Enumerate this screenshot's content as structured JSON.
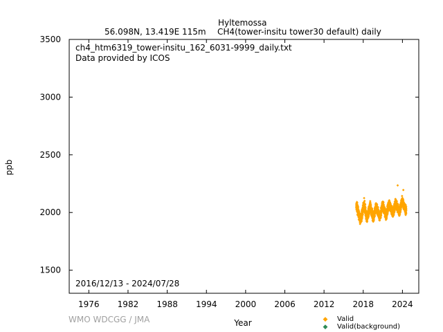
{
  "header": {
    "station": "Hyltemossa",
    "location": "56.098N, 13.419E 115m",
    "series_desc": "CH4(tower-insitu tower30 default) daily"
  },
  "chart_data": {
    "type": "scatter",
    "title": "Hyltemossa",
    "xlabel": "Year",
    "ylabel": "ppb",
    "xlim": [
      1973,
      2026.5
    ],
    "ylim": [
      1300,
      3500
    ],
    "xticks": [
      1976,
      1982,
      1988,
      1994,
      2000,
      2006,
      2012,
      2018,
      2024
    ],
    "yticks": [
      1500,
      2000,
      2500,
      3000,
      3500
    ],
    "grid": false,
    "legend_position": "bottom-right",
    "annotations": {
      "file": "ch4_htm6319_tower-insitu_162_6031-9999_daily.txt",
      "provider": "Data provided by ICOS",
      "period": "2016/12/13 - 2024/07/28"
    },
    "series": [
      {
        "name": "Valid",
        "color": "#ffa500",
        "description": "daily CH4 mole fraction, seasonal cycle with rising trend",
        "date_range": [
          "2016-12-13",
          "2024-07-28"
        ],
        "approx_points": [
          {
            "x": "2017-01-15",
            "y": 2050
          },
          {
            "x": "2017-03-15",
            "y": 2010
          },
          {
            "x": "2017-07-15",
            "y": 1935
          },
          {
            "x": "2017-10-15",
            "y": 1975
          },
          {
            "x": "2018-01-15",
            "y": 2055
          },
          {
            "x": "2018-03-15",
            "y": 2060
          },
          {
            "x": "2018-07-15",
            "y": 1940
          },
          {
            "x": "2018-11-15",
            "y": 2015
          },
          {
            "x": "2019-01-15",
            "y": 2060
          },
          {
            "x": "2019-07-15",
            "y": 1950
          },
          {
            "x": "2019-12-15",
            "y": 2050
          },
          {
            "x": "2020-07-15",
            "y": 1960
          },
          {
            "x": "2020-12-15",
            "y": 2060
          },
          {
            "x": "2021-07-15",
            "y": 1975
          },
          {
            "x": "2021-12-15",
            "y": 2075
          },
          {
            "x": "2022-07-15",
            "y": 1990
          },
          {
            "x": "2022-12-15",
            "y": 2085
          },
          {
            "x": "2023-07-15",
            "y": 2000
          },
          {
            "x": "2023-12-15",
            "y": 2100
          },
          {
            "x": "2024-07-15",
            "y": 2020
          }
        ],
        "outliers": [
          {
            "x": "2018-02-20",
            "y": 2125
          },
          {
            "x": "2023-04-10",
            "y": 2235
          },
          {
            "x": "2024-02-20",
            "y": 2195
          }
        ]
      },
      {
        "name": "Valid(background)",
        "color": "#2e8b57",
        "approx_points": []
      }
    ]
  },
  "footer": {
    "credit": "WMO WDCGG / JMA"
  }
}
